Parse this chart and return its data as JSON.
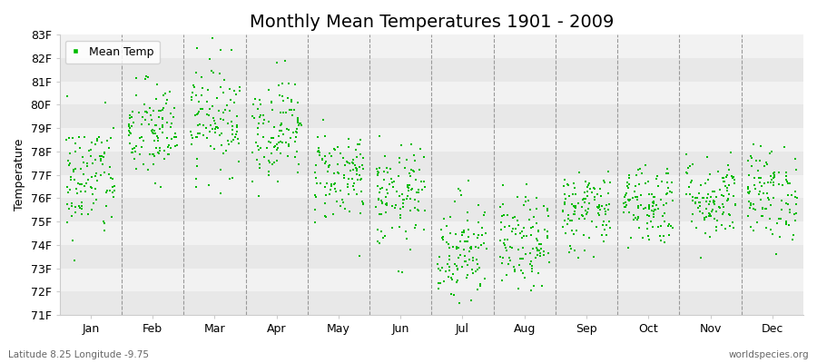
{
  "title": "Monthly Mean Temperatures 1901 - 2009",
  "ylabel": "Temperature",
  "xlabel": "",
  "months": [
    "Jan",
    "Feb",
    "Mar",
    "Apr",
    "May",
    "Jun",
    "Jul",
    "Aug",
    "Sep",
    "Oct",
    "Nov",
    "Dec"
  ],
  "ylim": [
    71.0,
    83.0
  ],
  "yticks": [
    71,
    72,
    73,
    74,
    75,
    76,
    77,
    78,
    79,
    80,
    81,
    82,
    83
  ],
  "ytick_labels": [
    "71F",
    "72F",
    "73F",
    "74F",
    "75F",
    "76F",
    "77F",
    "78F",
    "79F",
    "80F",
    "81F",
    "82F",
    "83F"
  ],
  "marker_color": "#00bb00",
  "marker": "s",
  "marker_size": 3.0,
  "background_color": "#ffffff",
  "plot_bg_color": "#ffffff",
  "band_color_dark": "#e8e8e8",
  "band_color_light": "#f2f2f2",
  "legend_label": "Mean Temp",
  "footer_left": "Latitude 8.25 Longitude -9.75",
  "footer_right": "worldspecies.org",
  "title_fontsize": 14,
  "label_fontsize": 9,
  "tick_fontsize": 9,
  "monthly_means": [
    76.8,
    78.8,
    79.5,
    79.0,
    77.0,
    76.0,
    73.8,
    74.0,
    75.5,
    75.8,
    76.0,
    76.2
  ],
  "monthly_stds": [
    1.3,
    1.1,
    1.2,
    1.1,
    1.0,
    1.1,
    1.2,
    1.0,
    0.9,
    0.9,
    0.9,
    1.0
  ],
  "n_years": 109,
  "seed": 42
}
